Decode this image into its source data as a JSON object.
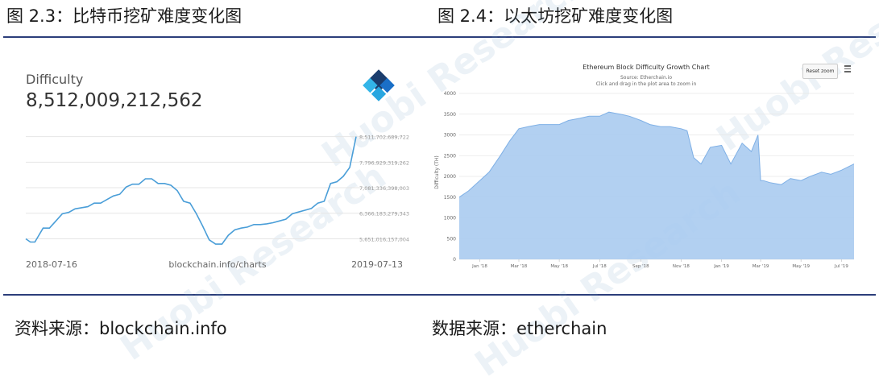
{
  "figures": {
    "left_title": "图 2.3：比特币挖矿难度变化图",
    "right_title": "图 2.4：以太坊挖矿难度变化图",
    "left_source": "资料来源：blockchain.info",
    "right_source": "数据来源：etherchain"
  },
  "watermark": "Huobi Research",
  "icons": {
    "logo": "blockchain-logo-icon",
    "menu": "hamburger-menu-icon"
  },
  "colors": {
    "rule": "#2c3e7a",
    "btc_line": "#4a9ed8",
    "eth_fill": "#aacbef",
    "eth_line": "#7fb0e6"
  },
  "btc": {
    "label": "Difficulty",
    "value": "8,512,009,212,562",
    "x_start_label": "2018-07-16",
    "x_mid_label": "blockchain.info/charts",
    "x_end_label": "2019-07-13",
    "y_tick_labels": [
      "8,511,702,689,722",
      "7,796,929,319,262",
      "7,081,336,398,003",
      "6,366,183,279,343",
      "5,651,016,157,004"
    ]
  },
  "eth": {
    "title": "Ethereum Block Difficulty Growth Chart",
    "subtitle": "Source: Etherchain.io",
    "subtitle2": "Click and drag in the plot area to zoom in",
    "reset_button": "Reset zoom",
    "ylabel": "Difficulty (TH)",
    "y_tick_labels": [
      "0",
      "500",
      "1000",
      "1500",
      "2000",
      "2500",
      "3000",
      "3500",
      "4000"
    ],
    "x_tick_labels": [
      "Jan '18",
      "Mar '18",
      "May '18",
      "Jul '18",
      "Sep '18",
      "Nov '18",
      "Jan '19",
      "Mar '19",
      "May '19",
      "Jul '19"
    ]
  },
  "chart_data": [
    {
      "type": "line",
      "title": "Difficulty",
      "xlabel": "",
      "ylabel": "",
      "x_range": [
        "2018-07-16",
        "2019-07-13"
      ],
      "ylim": [
        5300000000000,
        9000000000000
      ],
      "grid": true,
      "series": [
        {
          "x": [
            "2018-07-16",
            "2018-07-21",
            "2018-07-26",
            "2018-08-04",
            "2018-08-11",
            "2018-08-18",
            "2018-08-25",
            "2018-09-01",
            "2018-09-08",
            "2018-09-15",
            "2018-09-22",
            "2018-09-29",
            "2018-10-06",
            "2018-10-13",
            "2018-10-20",
            "2018-10-27",
            "2018-11-03",
            "2018-11-10",
            "2018-11-17",
            "2018-11-24",
            "2018-12-01",
            "2018-12-08",
            "2018-12-15",
            "2018-12-22",
            "2018-12-29",
            "2019-01-05",
            "2019-01-12",
            "2019-01-19",
            "2019-01-26",
            "2019-02-02",
            "2019-02-09",
            "2019-02-16",
            "2019-02-23",
            "2019-03-02",
            "2019-03-09",
            "2019-03-16",
            "2019-03-23",
            "2019-03-30",
            "2019-04-06",
            "2019-04-13",
            "2019-04-20",
            "2019-04-27",
            "2019-05-04",
            "2019-05-11",
            "2019-05-18",
            "2019-05-25",
            "2019-06-01",
            "2019-06-08",
            "2019-06-15",
            "2019-06-22",
            "2019-06-29",
            "2019-07-06",
            "2019-07-13"
          ],
          "values": [
            5650000000000,
            5560000000000,
            5560000000000,
            5950000000000,
            5950000000000,
            6150000000000,
            6350000000000,
            6390000000000,
            6490000000000,
            6520000000000,
            6550000000000,
            6650000000000,
            6650000000000,
            6750000000000,
            6850000000000,
            6900000000000,
            7100000000000,
            7180000000000,
            7180000000000,
            7330000000000,
            7330000000000,
            7200000000000,
            7200000000000,
            7150000000000,
            7000000000000,
            6700000000000,
            6650000000000,
            6350000000000,
            6000000000000,
            5620000000000,
            5500000000000,
            5500000000000,
            5750000000000,
            5900000000000,
            5950000000000,
            5980000000000,
            6050000000000,
            6050000000000,
            6070000000000,
            6100000000000,
            6150000000000,
            6200000000000,
            6350000000000,
            6400000000000,
            6450000000000,
            6500000000000,
            6650000000000,
            6700000000000,
            7200000000000,
            7250000000000,
            7400000000000,
            7650000000000,
            8512009212562
          ]
        }
      ]
    },
    {
      "type": "area",
      "title": "Ethereum Block Difficulty Growth Chart",
      "xlabel": "",
      "ylabel": "Difficulty (TH)",
      "ylim": [
        0,
        4000
      ],
      "x_range": [
        "2017-12-01",
        "2019-07-20"
      ],
      "grid": true,
      "series": [
        {
          "x": [
            "2017-12-01",
            "2017-12-15",
            "2018-01-01",
            "2018-01-15",
            "2018-02-01",
            "2018-02-15",
            "2018-03-01",
            "2018-03-15",
            "2018-04-01",
            "2018-04-15",
            "2018-05-01",
            "2018-05-15",
            "2018-06-01",
            "2018-06-15",
            "2018-07-01",
            "2018-07-15",
            "2018-08-01",
            "2018-08-15",
            "2018-09-01",
            "2018-09-15",
            "2018-10-01",
            "2018-10-15",
            "2018-11-01",
            "2018-11-10",
            "2018-11-20",
            "2018-12-01",
            "2018-12-15",
            "2019-01-01",
            "2019-01-15",
            "2019-02-01",
            "2019-02-15",
            "2019-02-25",
            "2019-03-01",
            "2019-03-05",
            "2019-03-15",
            "2019-04-01",
            "2019-04-15",
            "2019-05-01",
            "2019-05-15",
            "2019-06-01",
            "2019-06-15",
            "2019-07-01",
            "2019-07-20"
          ],
          "values": [
            1500,
            1650,
            1900,
            2100,
            2500,
            2850,
            3150,
            3200,
            3250,
            3250,
            3250,
            3350,
            3400,
            3450,
            3450,
            3550,
            3500,
            3450,
            3350,
            3250,
            3200,
            3200,
            3150,
            3100,
            2450,
            2300,
            2700,
            2750,
            2300,
            2800,
            2600,
            3000,
            1900,
            1900,
            1850,
            1800,
            1950,
            1900,
            2000,
            2100,
            2050,
            2150,
            2300
          ]
        }
      ]
    }
  ]
}
